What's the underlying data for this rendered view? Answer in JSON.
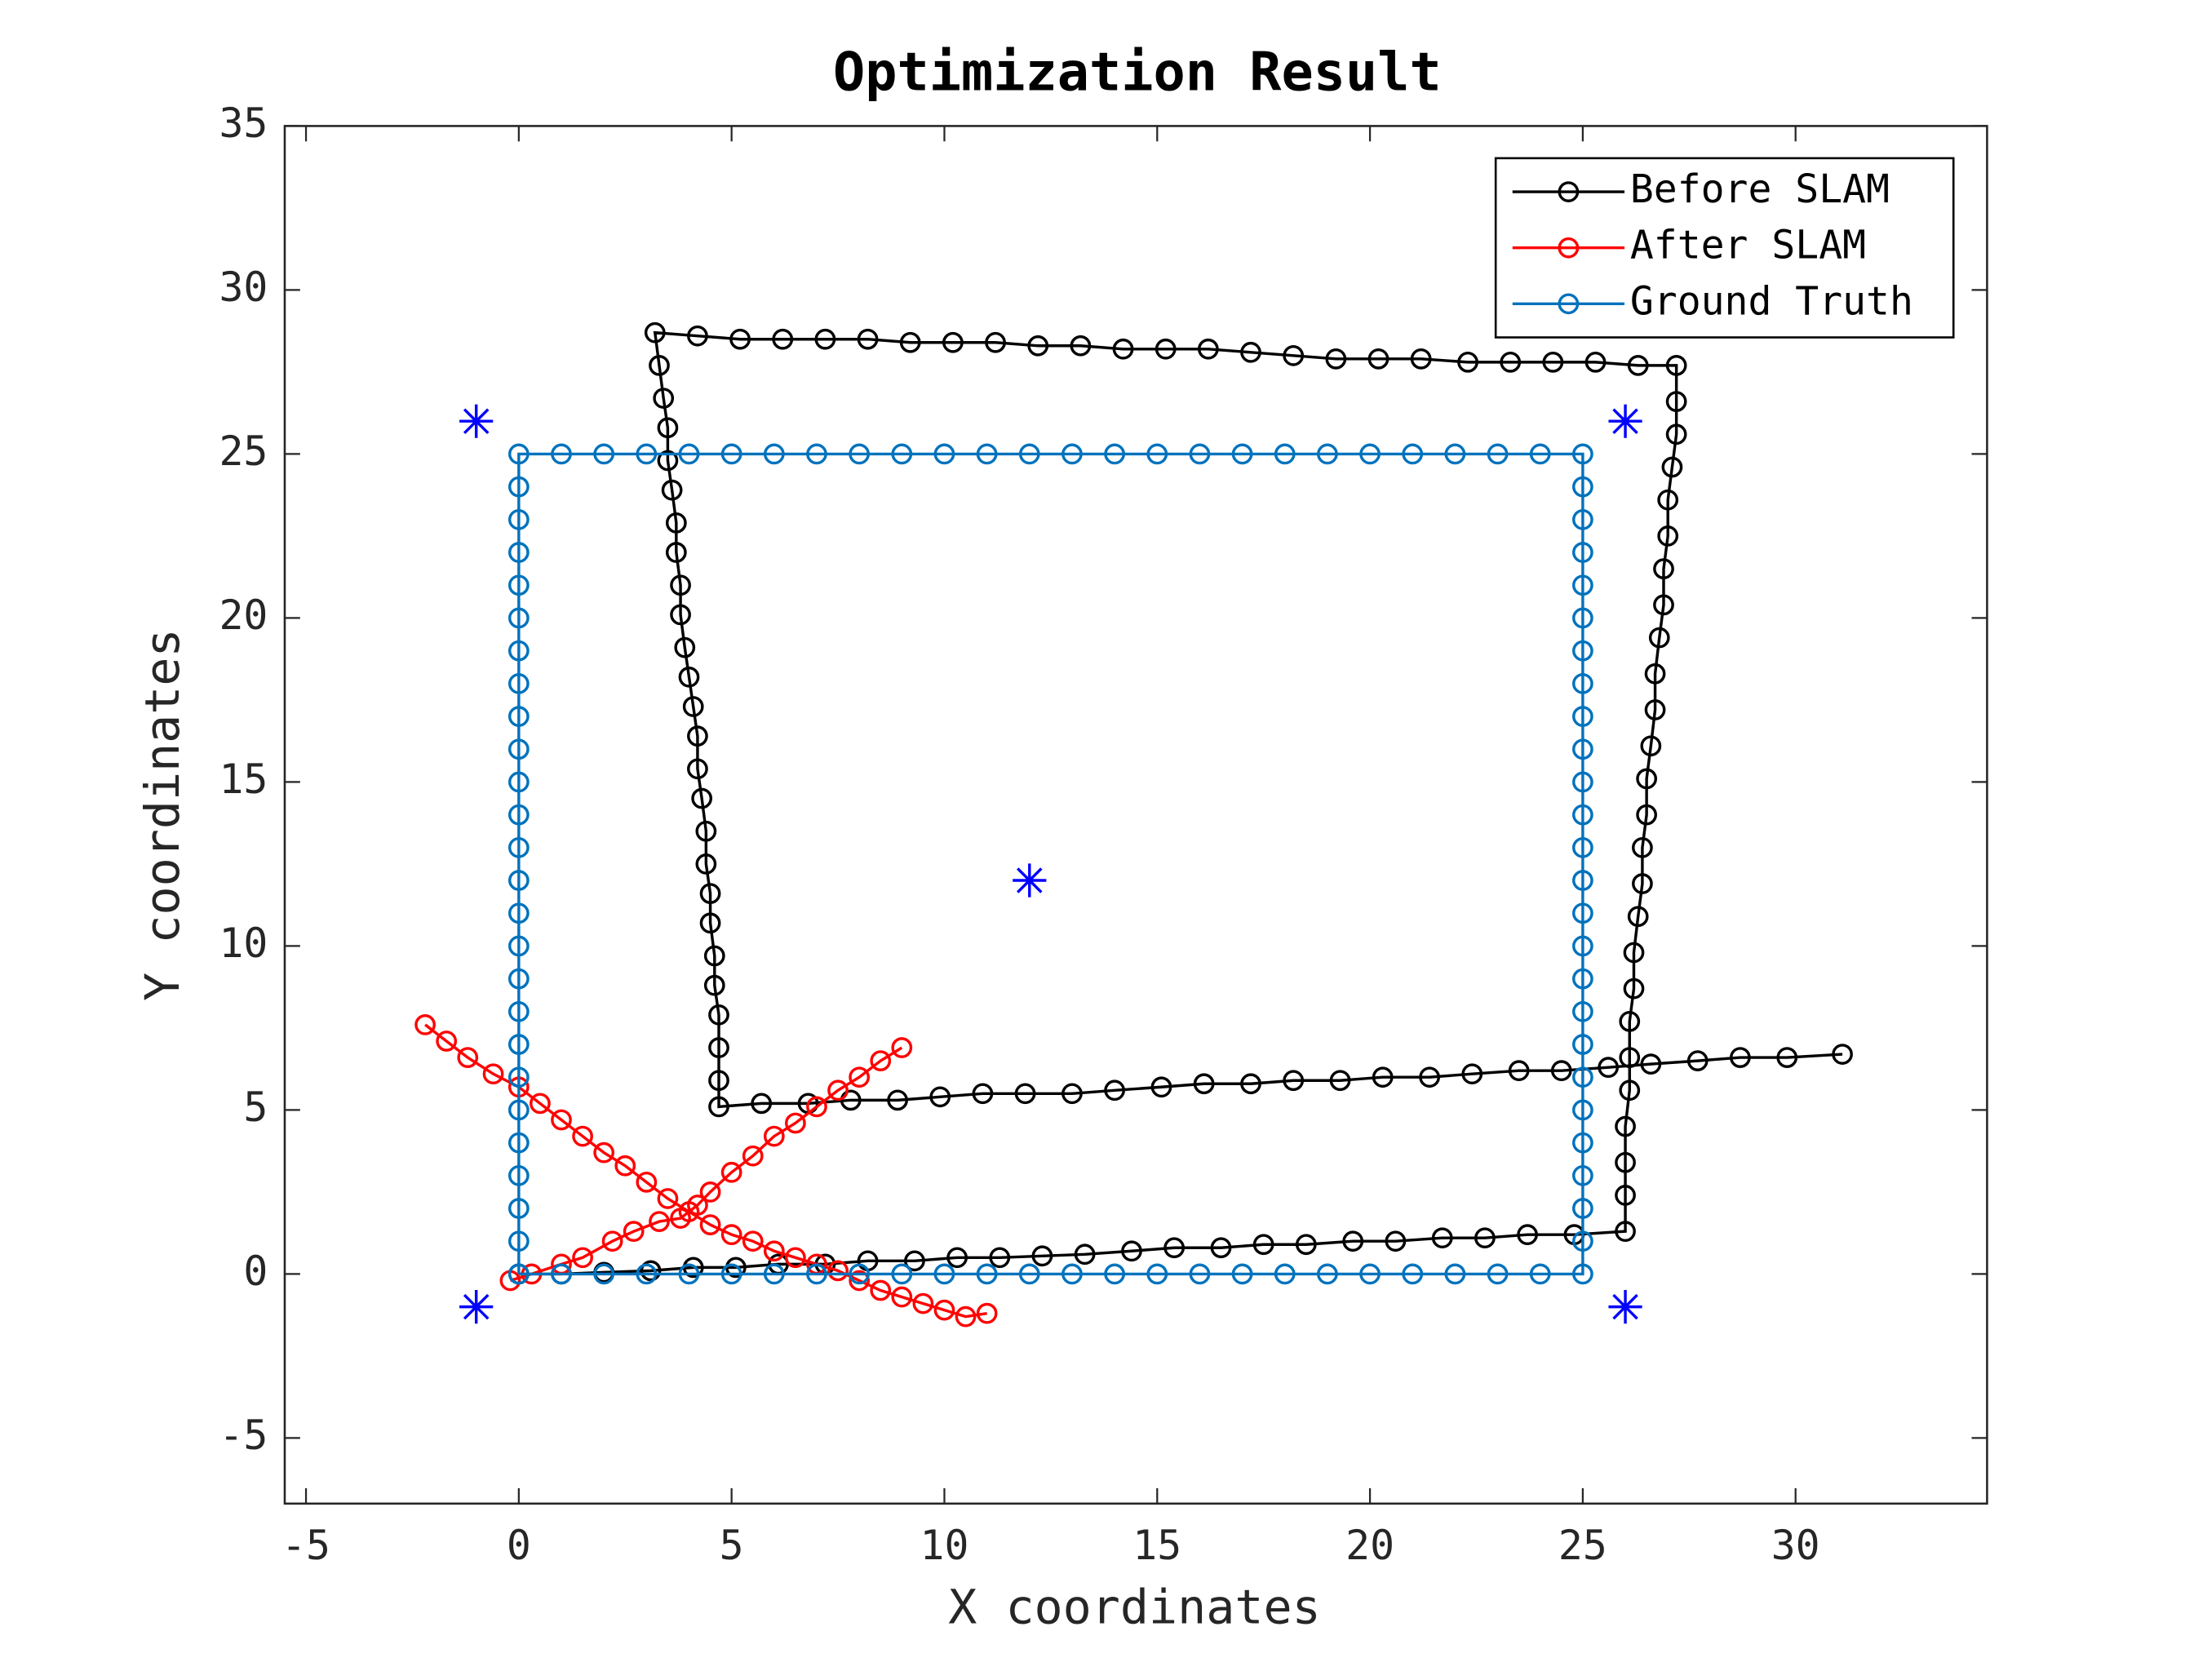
{
  "chart_data": {
    "type": "line",
    "title": "Optimization Result",
    "xlabel": "X coordinates",
    "ylabel": "Y coordinates",
    "xlim": [
      -5.5,
      34.5
    ],
    "ylim": [
      -7,
      35
    ],
    "xticks": [
      -5,
      0,
      5,
      10,
      15,
      20,
      25,
      30
    ],
    "yticks": [
      -5,
      0,
      5,
      10,
      15,
      20,
      25,
      30,
      35
    ],
    "legend": "upper right",
    "series": [
      {
        "name": "Before SLAM",
        "color": "#000000",
        "marker": "o",
        "line": true,
        "x": [
          0,
          1,
          2,
          3.1,
          4.1,
          5.1,
          6.1,
          7.2,
          8.2,
          9.3,
          10.3,
          11.3,
          12.3,
          13.3,
          14.4,
          15.4,
          16.5,
          17.5,
          18.5,
          19.6,
          20.6,
          21.7,
          22.7,
          23.7,
          24.8,
          26,
          26,
          26,
          26,
          26.1,
          26.1,
          26.1,
          26.2,
          26.2,
          26.3,
          26.4,
          26.4,
          26.5,
          26.5,
          26.6,
          26.7,
          26.7,
          26.8,
          26.9,
          26.9,
          27,
          27,
          27.1,
          27.2,
          27.2,
          27.2,
          26.3,
          25.3,
          24.3,
          23.3,
          22.3,
          21.2,
          20.2,
          19.2,
          18.2,
          17.2,
          16.2,
          15.2,
          14.2,
          13.2,
          12.2,
          11.2,
          10.2,
          9.2,
          8.2,
          7.2,
          6.2,
          5.2,
          4.2,
          3.2,
          3.3,
          3.4,
          3.5,
          3.5,
          3.6,
          3.7,
          3.7,
          3.8,
          3.8,
          3.9,
          4,
          4.1,
          4.2,
          4.2,
          4.3,
          4.4,
          4.4,
          4.5,
          4.5,
          4.6,
          4.6,
          4.7,
          4.7,
          4.7,
          4.7,
          5.7,
          6.8,
          7.8,
          8.9,
          9.9,
          10.9,
          11.9,
          13,
          14,
          15.1,
          16.1,
          17.2,
          18.2,
          19.3,
          20.3,
          21.4,
          22.4,
          23.5,
          24.5,
          25.6,
          26.6,
          27.7,
          28.7,
          29.8,
          31.1
        ],
        "y": [
          0,
          0,
          0.05,
          0.1,
          0.2,
          0.2,
          0.3,
          0.3,
          0.4,
          0.4,
          0.5,
          0.5,
          0.55,
          0.6,
          0.7,
          0.8,
          0.8,
          0.9,
          0.9,
          1,
          1,
          1.1,
          1.1,
          1.2,
          1.2,
          1.3,
          2.4,
          3.4,
          4.5,
          5.6,
          6.6,
          7.7,
          8.7,
          9.8,
          10.9,
          11.9,
          13,
          14,
          15.1,
          16.1,
          17.2,
          18.3,
          19.4,
          20.4,
          21.5,
          22.5,
          23.6,
          24.6,
          25.6,
          26.6,
          27.7,
          27.7,
          27.8,
          27.8,
          27.8,
          27.8,
          27.9,
          27.9,
          27.9,
          28,
          28.1,
          28.2,
          28.2,
          28.2,
          28.3,
          28.3,
          28.4,
          28.4,
          28.4,
          28.5,
          28.5,
          28.5,
          28.5,
          28.6,
          28.7,
          27.7,
          26.7,
          25.8,
          24.8,
          23.9,
          22.9,
          22,
          21,
          20.1,
          19.1,
          18.2,
          17.3,
          16.4,
          15.4,
          14.5,
          13.5,
          12.5,
          11.6,
          10.7,
          9.7,
          8.8,
          7.9,
          6.9,
          5.9,
          5.1,
          5.2,
          5.2,
          5.3,
          5.3,
          5.4,
          5.5,
          5.5,
          5.5,
          5.6,
          5.7,
          5.8,
          5.8,
          5.9,
          5.9,
          6,
          6,
          6.1,
          6.2,
          6.2,
          6.3,
          6.4,
          6.5,
          6.6,
          6.6,
          6.7
        ]
      },
      {
        "name": "After SLAM",
        "color": "#ff0000",
        "marker": "o",
        "line": true,
        "x": [
          -0.2,
          0.3,
          1,
          1.5,
          2.2,
          2.7,
          3.3,
          3.8,
          4.2,
          4.5,
          5,
          5.5,
          6,
          6.5,
          7,
          7.5,
          8,
          8.5,
          9,
          null,
          -2.2,
          -1.7,
          -1.2,
          -0.6,
          0,
          0.5,
          1,
          1.5,
          2,
          2.5,
          3,
          3.5,
          4,
          4.5,
          5,
          5.5,
          6,
          6.5,
          7,
          7.5,
          8,
          8.5,
          9,
          9.5,
          10,
          10.5,
          11
        ],
        "y": [
          -0.2,
          0,
          0.3,
          0.5,
          1,
          1.3,
          1.6,
          1.7,
          2.1,
          2.5,
          3.1,
          3.6,
          4.2,
          4.6,
          5.1,
          5.6,
          6,
          6.5,
          6.9,
          null,
          7.6,
          7.1,
          6.6,
          6.1,
          5.7,
          5.2,
          4.7,
          4.2,
          3.7,
          3.3,
          2.8,
          2.3,
          1.9,
          1.5,
          1.2,
          1,
          0.7,
          0.5,
          0.3,
          0.1,
          -0.2,
          -0.5,
          -0.7,
          -0.9,
          -1.1,
          -1.3,
          -1.2
        ]
      },
      {
        "name": "Ground Truth",
        "color": "#0072bd",
        "marker": "o",
        "line": true,
        "x": [
          0,
          1,
          2,
          3,
          4,
          5,
          6,
          7,
          8,
          9,
          10,
          11,
          12,
          13,
          14,
          15,
          16,
          17,
          18,
          19,
          20,
          21,
          22,
          23,
          24,
          25,
          25,
          25,
          25,
          25,
          25,
          25,
          25,
          25,
          25,
          25,
          25,
          25,
          25,
          25,
          25,
          25,
          25,
          25,
          25,
          25,
          25,
          25,
          25,
          25,
          25,
          24,
          23,
          22,
          21,
          20,
          19,
          18,
          17,
          16,
          15,
          14,
          13,
          12,
          11,
          10,
          9,
          8,
          7,
          6,
          5,
          4,
          3,
          2,
          1,
          0,
          0,
          0,
          0,
          0,
          0,
          0,
          0,
          0,
          0,
          0,
          0,
          0,
          0,
          0,
          0,
          0,
          0,
          0,
          0,
          0,
          0,
          0,
          0,
          0,
          0
        ],
        "y": [
          0,
          0,
          0,
          0,
          0,
          0,
          0,
          0,
          0,
          0,
          0,
          0,
          0,
          0,
          0,
          0,
          0,
          0,
          0,
          0,
          0,
          0,
          0,
          0,
          0,
          0,
          1,
          2,
          3,
          4,
          5,
          6,
          7,
          8,
          9,
          10,
          11,
          12,
          13,
          14,
          15,
          16,
          17,
          18,
          19,
          20,
          21,
          22,
          23,
          24,
          25,
          25,
          25,
          25,
          25,
          25,
          25,
          25,
          25,
          25,
          25,
          25,
          25,
          25,
          25,
          25,
          25,
          25,
          25,
          25,
          25,
          25,
          25,
          25,
          25,
          25,
          24,
          23,
          22,
          21,
          20,
          19,
          18,
          17,
          16,
          15,
          14,
          13,
          12,
          11,
          10,
          9,
          8,
          7,
          6,
          5,
          4,
          3,
          2,
          1,
          0
        ]
      },
      {
        "color": "#0000ff",
        "marker": "*",
        "line": false,
        "x": [
          -1,
          26,
          12,
          -1,
          26
        ],
        "y": [
          26,
          26,
          12,
          -1,
          -1
        ]
      }
    ]
  }
}
